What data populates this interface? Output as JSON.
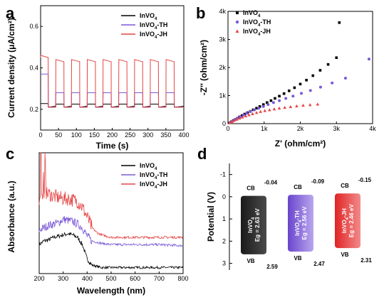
{
  "colors": {
    "InVO4": "#000000",
    "InVO4-TH": "#7b59d6",
    "InVO4-JH": "#e64545"
  },
  "chart_data": [
    {
      "panel": "a",
      "type": "line",
      "xlabel": "Time (s)",
      "ylabel": "Current density (μA/cm²)",
      "xlim": [
        0,
        400
      ],
      "ylim": [
        0.1,
        0.7
      ],
      "xticks": [
        "0",
        "50",
        "100",
        "150",
        "200",
        "250",
        "300",
        "350",
        "400"
      ],
      "yticks": [
        "0.2",
        "0.4",
        "0.6"
      ],
      "light_on": [
        [
          0,
          21
        ],
        [
          42,
          65
        ],
        [
          86,
          109
        ],
        [
          130,
          153
        ],
        [
          174,
          197
        ],
        [
          218,
          241
        ],
        [
          262,
          285
        ],
        [
          306,
          329
        ],
        [
          350,
          373
        ]
      ],
      "series": [
        {
          "name": "InVO4",
          "key": "InVO4",
          "dark": 0.21,
          "on": 0.225,
          "first_on": 0.228
        },
        {
          "name": "InVO4-TH",
          "key": "InVO4-TH",
          "dark": 0.21,
          "on": 0.28,
          "first_on": 0.37
        },
        {
          "name": "InVO4-JH",
          "key": "InVO4-JH",
          "dark": 0.21,
          "on": 0.43,
          "first_on": 0.45
        }
      ]
    },
    {
      "panel": "b",
      "type": "scatter",
      "xlabel": "Z' (ohm/cm²)",
      "ylabel": "-Z'' (ohm/cm²)",
      "xlim": [
        0,
        4000
      ],
      "ylim": [
        0,
        4000
      ],
      "xticks": [
        "0",
        "1k",
        "2k",
        "3k",
        "4k"
      ],
      "yticks": [
        "0",
        "1k",
        "2k",
        "3k",
        "4k"
      ],
      "series": [
        {
          "name": "InVO4",
          "key": "InVO4",
          "marker": "square",
          "x": [
            50,
            100,
            150,
            200,
            260,
            320,
            390,
            460,
            540,
            620,
            700,
            790,
            880,
            980,
            1080,
            1190,
            1300,
            1420,
            1550,
            1690,
            1840,
            2000,
            2170,
            2350,
            2550,
            2770,
            3000,
            3080
          ],
          "y": [
            30,
            70,
            110,
            150,
            195,
            240,
            290,
            340,
            390,
            440,
            495,
            550,
            610,
            680,
            750,
            820,
            900,
            980,
            1070,
            1170,
            1280,
            1410,
            1550,
            1710,
            1900,
            2110,
            2350,
            3600
          ]
        },
        {
          "name": "InVO4-TH",
          "key": "InVO4-TH",
          "marker": "circle",
          "x": [
            60,
            120,
            190,
            260,
            340,
            430,
            520,
            620,
            730,
            850,
            980,
            1110,
            1260,
            1420,
            1600,
            1800,
            2030,
            2280,
            2560,
            2880,
            3250,
            3900
          ],
          "y": [
            40,
            90,
            140,
            195,
            250,
            310,
            370,
            430,
            490,
            550,
            610,
            680,
            750,
            820,
            900,
            980,
            1080,
            1180,
            1300,
            1450,
            1620,
            2300
          ]
        },
        {
          "name": "InVO4-JH",
          "key": "InVO4-JH",
          "marker": "triangle",
          "x": [
            50,
            110,
            170,
            240,
            320,
            400,
            490,
            580,
            680,
            790,
            900,
            1020,
            1150,
            1280,
            1420,
            1570,
            1730,
            1900,
            2080,
            2270,
            2480
          ],
          "y": [
            30,
            70,
            110,
            150,
            190,
            230,
            270,
            310,
            350,
            390,
            430,
            460,
            490,
            520,
            550,
            575,
            600,
            625,
            650,
            670,
            690
          ]
        }
      ]
    },
    {
      "panel": "c",
      "type": "line",
      "xlabel": "Wavelength (nm)",
      "ylabel": "Absorbance (a.u.)",
      "xlim": [
        200,
        800
      ],
      "ylim": [
        0,
        1
      ],
      "xticks": [
        "200",
        "300",
        "400",
        "500",
        "600",
        "700",
        "800"
      ],
      "series": [
        {
          "name": "InVO4",
          "key": "InVO4",
          "x": [
            200,
            220,
            240,
            260,
            280,
            300,
            320,
            340,
            360,
            380,
            400,
            420,
            440,
            460,
            500,
            600,
            700,
            800
          ],
          "y": [
            0.24,
            0.27,
            0.28,
            0.3,
            0.31,
            0.32,
            0.33,
            0.32,
            0.3,
            0.24,
            0.12,
            0.07,
            0.06,
            0.05,
            0.05,
            0.05,
            0.05,
            0.05
          ]
        },
        {
          "name": "InVO4-TH",
          "key": "InVO4-TH",
          "x": [
            200,
            220,
            240,
            260,
            280,
            300,
            320,
            340,
            360,
            380,
            400,
            420,
            440,
            460,
            500,
            600,
            700,
            800
          ],
          "y": [
            0.36,
            0.38,
            0.4,
            0.41,
            0.42,
            0.45,
            0.44,
            0.43,
            0.41,
            0.38,
            0.31,
            0.27,
            0.26,
            0.25,
            0.24,
            0.24,
            0.24,
            0.23
          ]
        },
        {
          "name": "InVO4-JH",
          "key": "InVO4-JH",
          "x": [
            200,
            220,
            240,
            260,
            280,
            300,
            320,
            340,
            360,
            380,
            400,
            420,
            440,
            460,
            500,
            600,
            700,
            800
          ],
          "y": [
            0.62,
            0.65,
            0.66,
            0.64,
            0.63,
            0.62,
            0.62,
            0.61,
            0.6,
            0.55,
            0.47,
            0.38,
            0.34,
            0.32,
            0.3,
            0.3,
            0.3,
            0.3
          ]
        }
      ]
    },
    {
      "panel": "d",
      "type": "diagram",
      "ylabel": "Potential (V)",
      "ylim": [
        -1.5,
        3.3
      ],
      "yticks": [
        "-1",
        "0",
        "1",
        "2",
        "3"
      ],
      "bands": [
        {
          "key": "InVO4",
          "name": "InVO4",
          "eg_text": "Eg = 2.63 eV",
          "cb": -0.04,
          "vb": 2.59,
          "cb_text": "-0.04",
          "vb_text": "2.59"
        },
        {
          "key": "InVO4-TH",
          "name": "InVO4-TH",
          "eg_text": "Eg = 2.56 eV",
          "cb": -0.09,
          "vb": 2.47,
          "cb_text": "-0.09",
          "vb_text": "2.47"
        },
        {
          "key": "InVO4-JH",
          "name": "InVO4-JH",
          "eg_text": "Eg = 2.46 eV",
          "cb": -0.15,
          "vb": 2.31,
          "cb_text": "-0.15",
          "vb_text": "2.31"
        }
      ],
      "cb_label": "CB",
      "vb_label": "VB"
    }
  ],
  "panel_letters": [
    "a",
    "b",
    "c",
    "d"
  ],
  "legend_labels": {
    "InVO4": "InVO4",
    "InVO4-TH": "InVO4-TH",
    "InVO4-JH": "InVO4-JH"
  }
}
